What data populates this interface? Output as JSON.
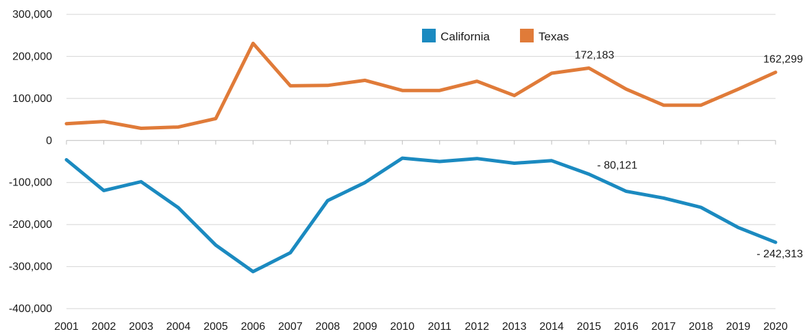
{
  "chart_data": {
    "type": "line",
    "x": [
      2001,
      2002,
      2003,
      2004,
      2005,
      2006,
      2007,
      2008,
      2009,
      2010,
      2011,
      2012,
      2013,
      2014,
      2015,
      2016,
      2017,
      2018,
      2019,
      2020
    ],
    "x_tick_labels": [
      "2001",
      "2002",
      "2003",
      "2004",
      "2005",
      "2006",
      "2007",
      "2008",
      "2009",
      "2010",
      "2011",
      "2012",
      "2013",
      "2014",
      "2015",
      "2016",
      "2017",
      "2018",
      "2019",
      "2020"
    ],
    "y_ticks": [
      300000,
      200000,
      100000,
      0,
      -100000,
      -200000,
      -300000,
      -400000
    ],
    "y_tick_labels": [
      "300,000",
      "200,000",
      "100,000",
      "0",
      "-100,000",
      "-200,000",
      "-300,000",
      "-400,000"
    ],
    "ylim": [
      -400000,
      300000
    ],
    "grid": true,
    "legend_position": "top-center",
    "title": "",
    "xlabel": "",
    "ylabel": "",
    "series": [
      {
        "name": "California",
        "color": "#1b8ac0",
        "values": [
          -46000,
          -119000,
          -98000,
          -160000,
          -249000,
          -312000,
          -267000,
          -143000,
          -100000,
          -42000,
          -50000,
          -43000,
          -54000,
          -48000,
          -80121,
          -121000,
          -137000,
          -159000,
          -207000,
          -242313
        ]
      },
      {
        "name": "Texas",
        "color": "#e07b39",
        "values": [
          40000,
          45000,
          29000,
          32000,
          52000,
          231000,
          130000,
          131000,
          143000,
          119000,
          119000,
          141000,
          107000,
          160000,
          172183,
          122000,
          84000,
          84000,
          122000,
          162299
        ]
      }
    ],
    "annotations": [
      {
        "series": "Texas",
        "x": 2015,
        "text": "172,183"
      },
      {
        "series": "Texas",
        "x": 2020,
        "text": "162,299"
      },
      {
        "series": "California",
        "x": 2015,
        "text": "- 80,121"
      },
      {
        "series": "California",
        "x": 2020,
        "text": "- 242,313"
      }
    ]
  }
}
